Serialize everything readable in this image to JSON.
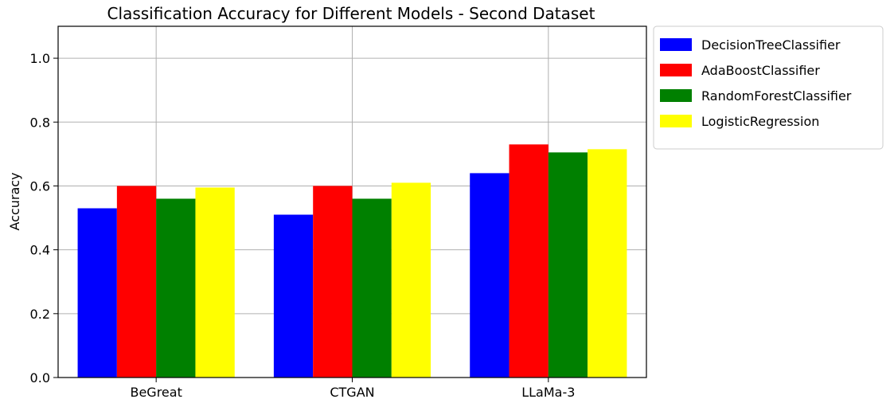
{
  "chart_data": {
    "type": "bar",
    "title": "Classification Accuracy for Different Models - Second Dataset",
    "xlabel": "",
    "ylabel": "Accuracy",
    "categories": [
      "BeGreat",
      "CTGAN",
      "LLaMa-3"
    ],
    "series": [
      {
        "name": "DecisionTreeClassifier",
        "color": "#0000ff",
        "values": [
          0.53,
          0.51,
          0.64
        ]
      },
      {
        "name": "AdaBoostClassifier",
        "color": "#ff0000",
        "values": [
          0.6,
          0.6,
          0.73
        ]
      },
      {
        "name": "RandomForestClassifier",
        "color": "#008000",
        "values": [
          0.56,
          0.56,
          0.705
        ]
      },
      {
        "name": "LogisticRegression",
        "color": "#ffff00",
        "values": [
          0.595,
          0.61,
          0.715
        ]
      }
    ],
    "ylim": [
      0,
      1.1
    ],
    "yticks": [
      "0.0",
      "0.2",
      "0.4",
      "0.6",
      "0.8",
      "1.0"
    ],
    "grid": true,
    "legend_position": "outside-top-right"
  }
}
